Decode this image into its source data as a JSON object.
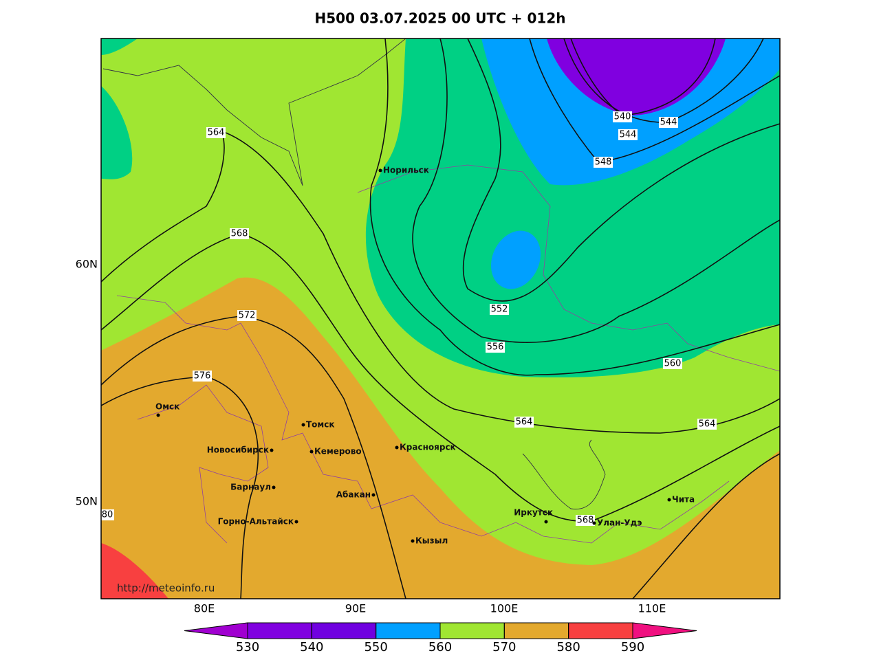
{
  "title": "H500  03.07.2025 00 UTC + 012h",
  "lat_labels": [
    "60N",
    "50N"
  ],
  "lon_labels": [
    "80E",
    "90E",
    "100E",
    "110E"
  ],
  "contour_labels": [
    "564",
    "568",
    "572",
    "576",
    "80",
    "552",
    "556",
    "560",
    "564",
    "564",
    "568",
    "548",
    "544",
    "544",
    "540"
  ],
  "cities": [
    "Норильск",
    "Омск",
    "Томск",
    "Новосибирск",
    "Кемерово",
    "Красноярск",
    "Барнаул",
    "Абакан",
    "Горно-Альтайск",
    "Кызыл",
    "Иркутск",
    "Улан-Удэ",
    "Чита"
  ],
  "source": "http://meteoinfo.ru",
  "colorbar": {
    "ticks": [
      530,
      540,
      550,
      560,
      570,
      580,
      590
    ],
    "colors": [
      "#a000d0",
      "#8000e0",
      "#7000e0",
      "#00a0ff",
      "#00d084",
      "#a0e632",
      "#e3a92e",
      "#f84040",
      "#f01080"
    ]
  }
}
